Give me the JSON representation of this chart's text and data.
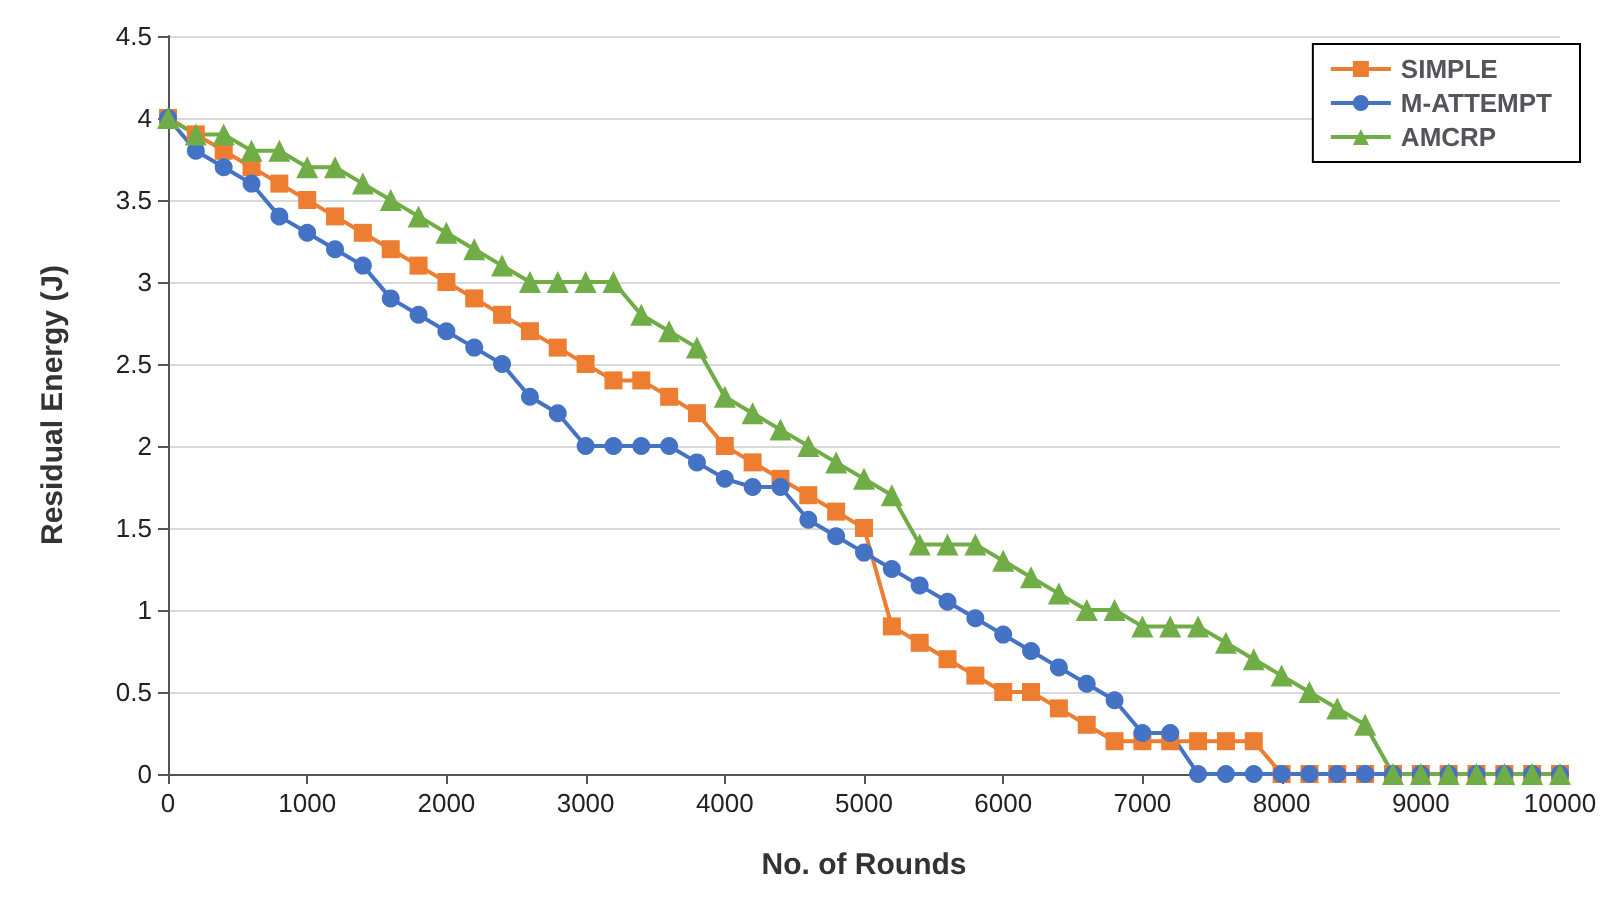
{
  "chart_data": {
    "type": "line",
    "xlabel": "No. of Rounds",
    "ylabel": "Residual Energy (J)",
    "x": [
      0,
      200,
      400,
      600,
      800,
      1000,
      1200,
      1400,
      1600,
      1800,
      2000,
      2200,
      2400,
      2600,
      2800,
      3000,
      3200,
      3400,
      3600,
      3800,
      4000,
      4200,
      4400,
      4600,
      4800,
      5000,
      5200,
      5400,
      5600,
      5800,
      6000,
      6200,
      6400,
      6600,
      6800,
      7000,
      7200,
      7400,
      7600,
      7800,
      8000,
      8200,
      8400,
      8600,
      8800,
      9000,
      9200,
      9400,
      9600,
      9800,
      10000
    ],
    "series": [
      {
        "name": "SIMPLE",
        "color": "#ed7d31",
        "marker": "square",
        "values": [
          4,
          3.9,
          3.8,
          3.7,
          3.6,
          3.5,
          3.4,
          3.3,
          3.2,
          3.1,
          3.0,
          2.9,
          2.8,
          2.7,
          2.6,
          2.5,
          2.4,
          2.4,
          2.3,
          2.2,
          2.0,
          1.9,
          1.8,
          1.7,
          1.6,
          1.5,
          0.9,
          0.8,
          0.7,
          0.6,
          0.5,
          0.5,
          0.4,
          0.3,
          0.2,
          0.2,
          0.2,
          0.2,
          0.2,
          0.2,
          0,
          0,
          0,
          0,
          0,
          0,
          0,
          0,
          0,
          0,
          0
        ]
      },
      {
        "name": "M-ATTEMPT",
        "color": "#4472c4",
        "marker": "circle",
        "values": [
          4,
          3.8,
          3.7,
          3.6,
          3.4,
          3.3,
          3.2,
          3.1,
          2.9,
          2.8,
          2.7,
          2.6,
          2.5,
          2.3,
          2.2,
          2.0,
          2.0,
          2.0,
          2.0,
          1.9,
          1.8,
          1.75,
          1.75,
          1.55,
          1.45,
          1.35,
          1.25,
          1.15,
          1.05,
          0.95,
          0.85,
          0.75,
          0.65,
          0.55,
          0.45,
          0.25,
          0.25,
          0,
          0,
          0,
          0,
          0,
          0,
          0,
          0,
          0,
          0,
          0,
          0,
          0,
          0
        ]
      },
      {
        "name": "AMCRP",
        "color": "#70ad47",
        "marker": "triangle",
        "values": [
          4,
          3.9,
          3.9,
          3.8,
          3.8,
          3.7,
          3.7,
          3.6,
          3.5,
          3.4,
          3.3,
          3.2,
          3.1,
          3.0,
          3.0,
          3.0,
          3.0,
          2.8,
          2.7,
          2.6,
          2.3,
          2.2,
          2.1,
          2.0,
          1.9,
          1.8,
          1.7,
          1.4,
          1.4,
          1.4,
          1.3,
          1.2,
          1.1,
          1.0,
          1.0,
          0.9,
          0.9,
          0.9,
          0.8,
          0.7,
          0.6,
          0.5,
          0.4,
          0.3,
          0,
          0,
          0,
          0,
          0,
          0,
          0
        ]
      }
    ],
    "xlim": [
      0,
      10000
    ],
    "xticks": [
      0,
      1000,
      2000,
      3000,
      4000,
      5000,
      6000,
      7000,
      8000,
      9000,
      10000
    ],
    "ylim": [
      0,
      4.5
    ],
    "yticks": [
      0,
      0.5,
      1,
      1.5,
      2,
      2.5,
      3,
      3.5,
      4,
      4.5
    ],
    "grid": "y",
    "legend": "top right",
    "line_style": "solid"
  }
}
